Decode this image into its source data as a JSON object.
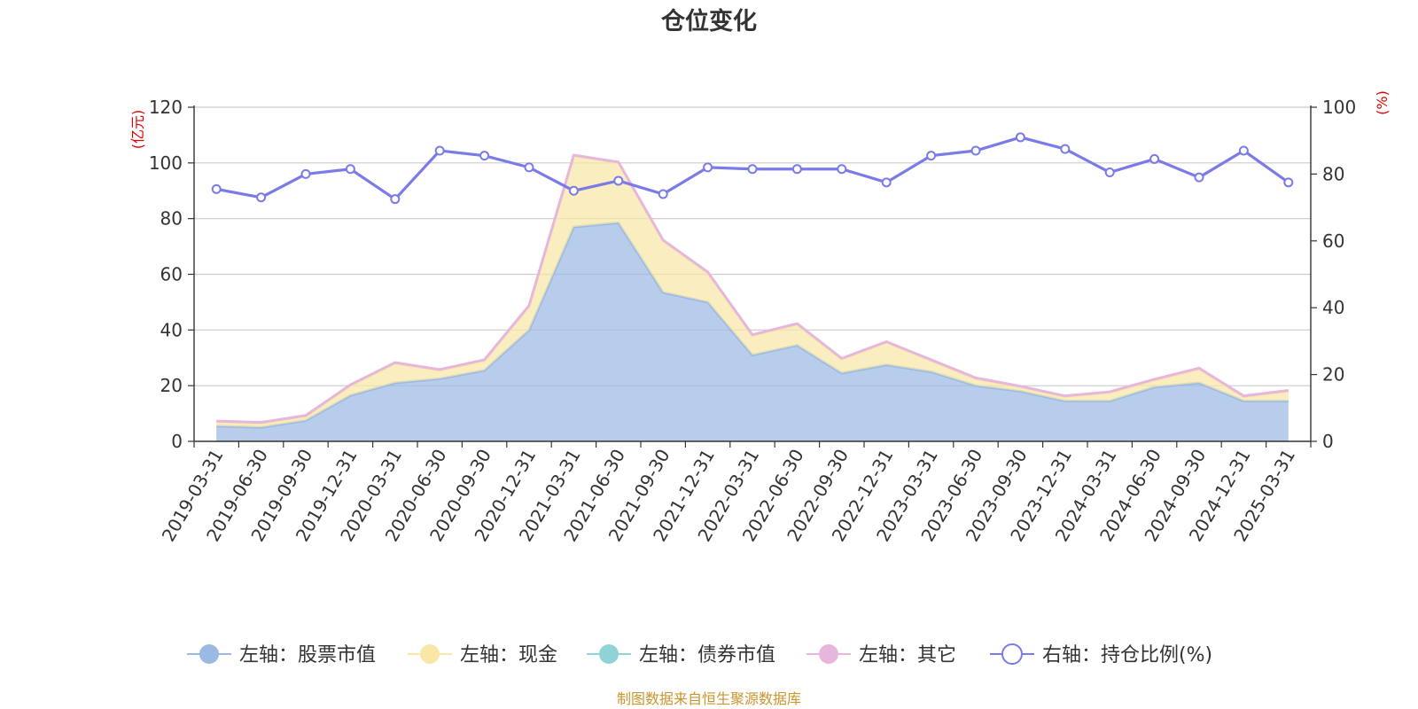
{
  "title": "仓位变化",
  "source_text": "制图数据来自恒生聚源数据库",
  "colors": {
    "stock": "#9bbae3",
    "cash": "#f8e7a7",
    "bond": "#8fd3d6",
    "other": "#e6b6dd",
    "ratio": "#7b7be8",
    "axis_unit": "#e00000",
    "source": "#c9952e"
  },
  "chart_data": {
    "type": "area",
    "title": "仓位变化",
    "x": [
      "2019-03-31",
      "2019-06-30",
      "2019-09-30",
      "2019-12-31",
      "2020-03-31",
      "2020-06-30",
      "2020-09-30",
      "2020-12-31",
      "2021-03-31",
      "2021-06-30",
      "2021-09-30",
      "2021-12-31",
      "2022-03-31",
      "2022-06-30",
      "2022-09-30",
      "2022-12-31",
      "2023-03-31",
      "2023-06-30",
      "2023-09-30",
      "2023-12-31",
      "2024-03-31",
      "2024-06-30",
      "2024-09-30",
      "2024-12-31",
      "2025-03-31"
    ],
    "left_axis": {
      "unit": "(亿元)",
      "ylim": [
        0,
        120
      ],
      "ticks": [
        0,
        20,
        40,
        60,
        80,
        100,
        120
      ]
    },
    "right_axis": {
      "unit": "(%)",
      "ylim": [
        0,
        100
      ],
      "ticks": [
        0,
        20,
        40,
        60,
        80,
        100
      ]
    },
    "stacked": true,
    "grid": true,
    "legend_position": "bottom",
    "series": [
      {
        "key": "stock",
        "name": "左轴：股票市值",
        "axis": "left",
        "kind": "area",
        "values": [
          5.5,
          5.0,
          7.5,
          16.5,
          21.0,
          22.5,
          25.5,
          40.0,
          77.0,
          78.5,
          53.5,
          50.0,
          31.0,
          34.5,
          24.5,
          27.5,
          25.0,
          20.0,
          18.0,
          14.5,
          14.5,
          19.5,
          21.0,
          14.5,
          14.5
        ]
      },
      {
        "key": "cash",
        "name": "左轴：现金",
        "axis": "left",
        "kind": "area",
        "values": [
          1.5,
          1.5,
          1.5,
          3.5,
          7.0,
          3.0,
          3.5,
          8.5,
          25.5,
          21.5,
          18.5,
          10.5,
          7.0,
          7.5,
          5.0,
          8.0,
          4.0,
          2.5,
          1.5,
          1.5,
          3.0,
          2.5,
          5.0,
          1.5,
          3.5
        ]
      },
      {
        "key": "bond",
        "name": "左轴：债券市值",
        "axis": "left",
        "kind": "area",
        "values": [
          0,
          0,
          0,
          0,
          0,
          0,
          0,
          0,
          0,
          0,
          0,
          0,
          0,
          0,
          0,
          0,
          0,
          0,
          0,
          0,
          0,
          0,
          0,
          0,
          0
        ]
      },
      {
        "key": "other",
        "name": "左轴：其它",
        "axis": "left",
        "kind": "area",
        "values": [
          0.3,
          0.3,
          0.3,
          0.3,
          0.3,
          0.3,
          0.3,
          0.3,
          0.3,
          0.3,
          0.3,
          0.3,
          0.3,
          0.3,
          0.3,
          0.3,
          0.3,
          0.3,
          0.3,
          0.3,
          0.3,
          0.3,
          0.3,
          0.3,
          0.3
        ]
      },
      {
        "key": "ratio",
        "name": "右轴：持仓比例(%)",
        "axis": "right",
        "kind": "line",
        "values": [
          75.5,
          73.0,
          80.0,
          81.5,
          72.5,
          87.0,
          85.5,
          82.0,
          75.0,
          78.0,
          74.0,
          82.0,
          81.5,
          81.5,
          81.5,
          77.5,
          85.5,
          87.0,
          91.0,
          87.5,
          80.5,
          84.5,
          79.0,
          87.0,
          77.5
        ]
      }
    ]
  }
}
